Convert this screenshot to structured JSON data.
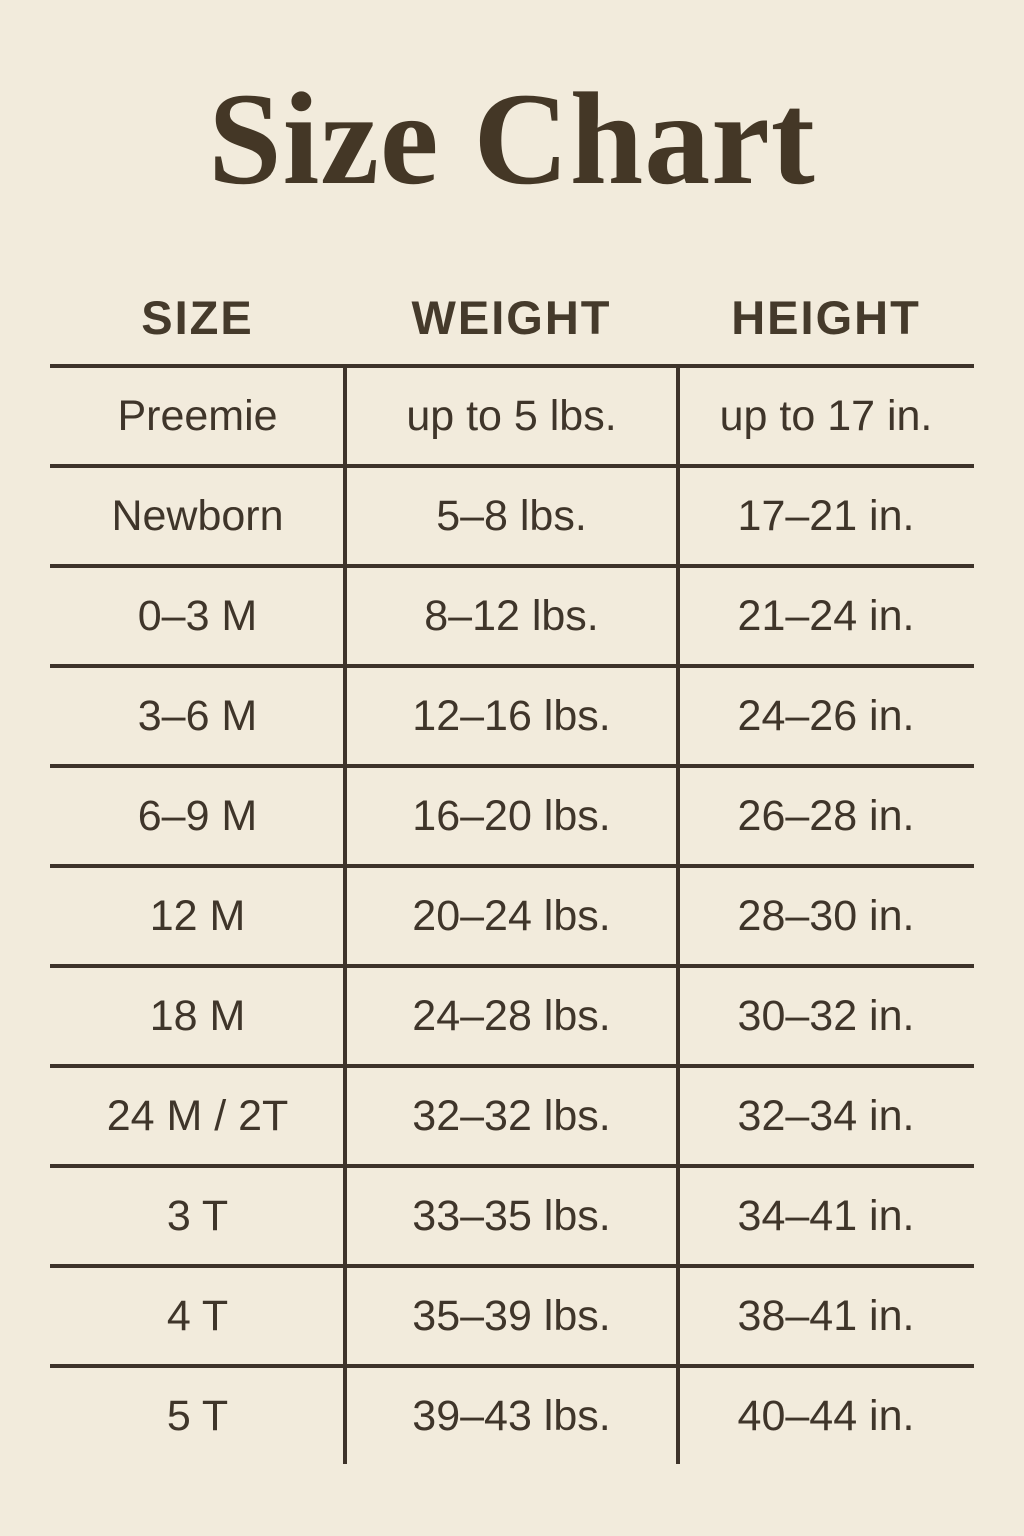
{
  "page": {
    "title": "Size Chart",
    "colors": {
      "background": "#f2ebdc",
      "text": "#3f352a",
      "line": "#3e332a"
    }
  },
  "chart_data": {
    "type": "table",
    "title": "Size Chart",
    "columns": [
      "SIZE",
      "WEIGHT",
      "HEIGHT"
    ],
    "rows": [
      [
        "Preemie",
        "up to 5 lbs.",
        "up to 17 in."
      ],
      [
        "Newborn",
        "5–8 lbs.",
        "17–21 in."
      ],
      [
        "0–3 M",
        "8–12 lbs.",
        "21–24 in."
      ],
      [
        "3–6 M",
        "12–16 lbs.",
        "24–26 in."
      ],
      [
        "6–9 M",
        "16–20 lbs.",
        "26–28 in."
      ],
      [
        "12 M",
        "20–24 lbs.",
        "28–30 in."
      ],
      [
        "18 M",
        "24–28 lbs.",
        "30–32 in."
      ],
      [
        "24 M / 2T",
        "32–32 lbs.",
        "32–34 in."
      ],
      [
        "3 T",
        "33–35 lbs.",
        "34–41 in."
      ],
      [
        "4 T",
        "35–39 lbs.",
        "38–41 in."
      ],
      [
        "5 T",
        "39–43 lbs.",
        "40–44 in."
      ]
    ]
  }
}
